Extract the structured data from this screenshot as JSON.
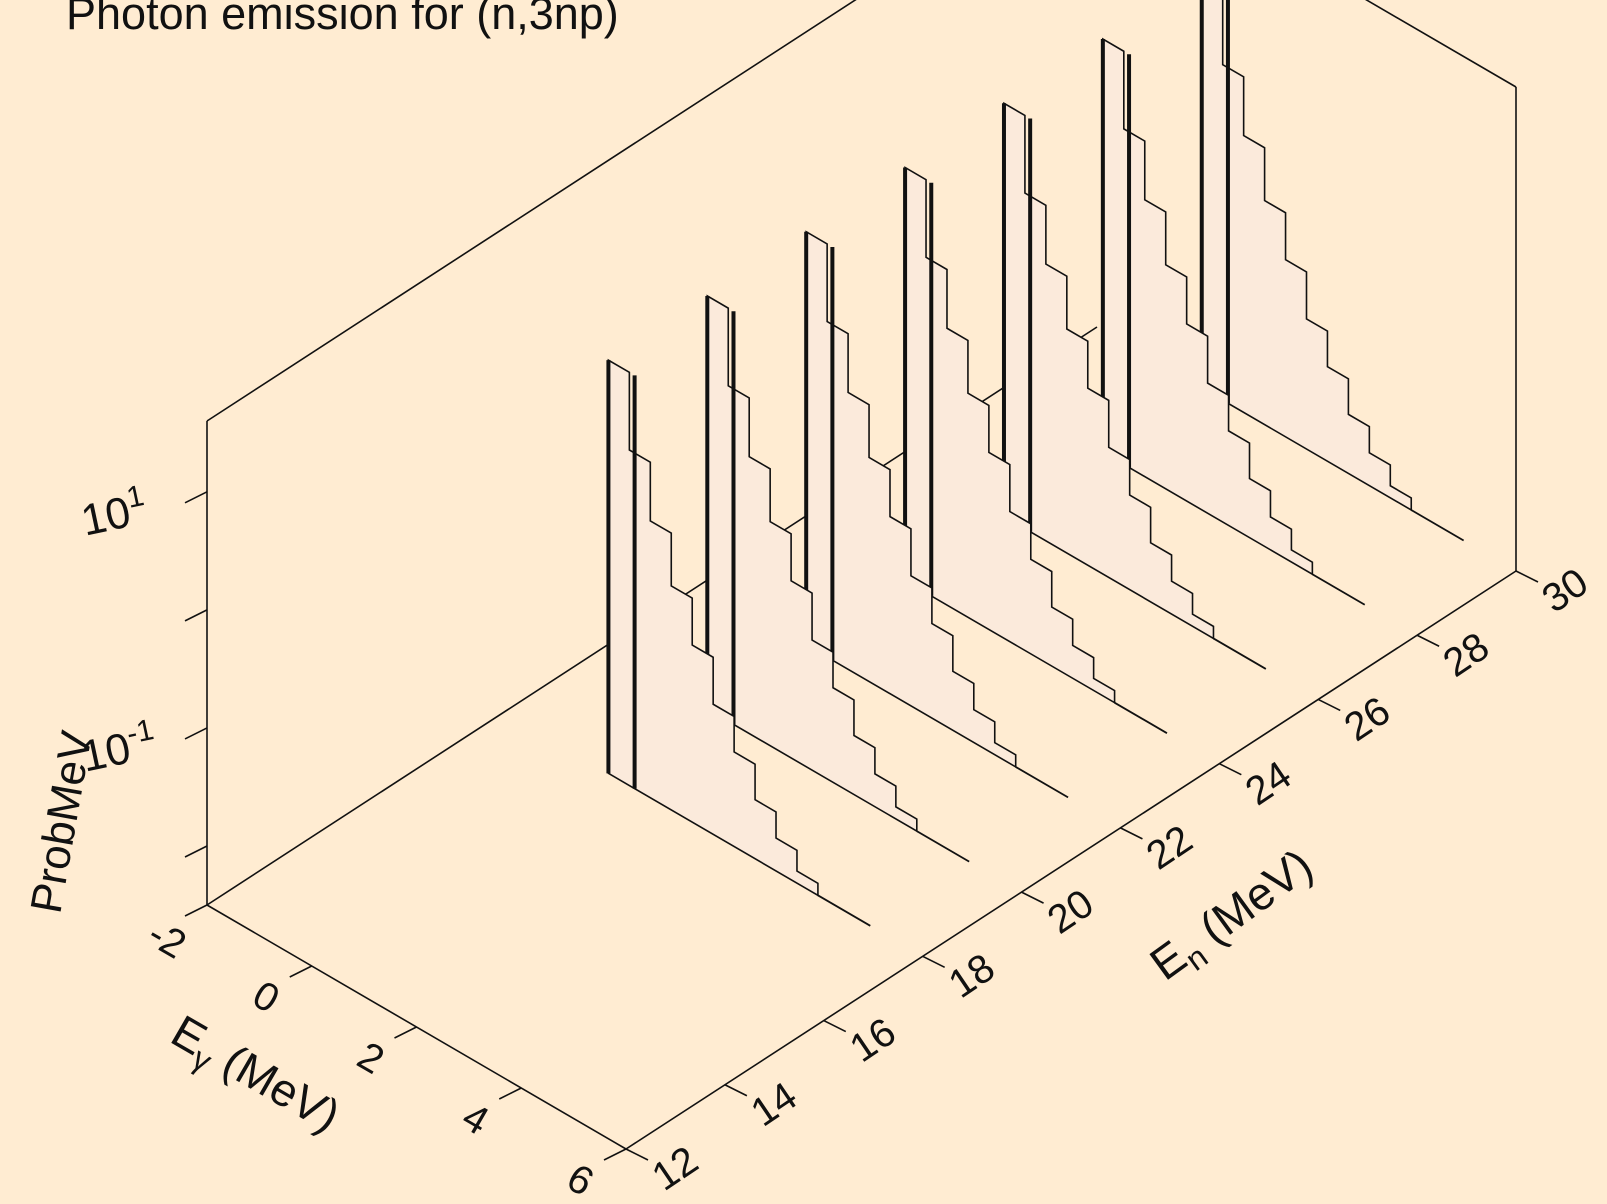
{
  "chart_data": {
    "type": "area",
    "title": "Photon emission for (n,3np)",
    "zlabel": "ProbMeV",
    "xlabel_main": "E",
    "xlabel_sub": "γ",
    "xlabel_units": "(MeV)",
    "ylabel_main": "E",
    "ylabel_sub": "n",
    "ylabel_units": "(MeV)",
    "x_ticks": [
      "-2",
      "0",
      "2",
      "4",
      "6"
    ],
    "y_ticks": [
      "12",
      "14",
      "16",
      "18",
      "20",
      "22",
      "24",
      "26",
      "28",
      "30"
    ],
    "z_ticks": [
      {
        "base": "10",
        "exp": "1"
      },
      {
        "base": "10",
        "exp": "-1"
      }
    ],
    "xlim": [
      -2,
      6
    ],
    "ylim": [
      12,
      30
    ],
    "zscale": "log",
    "zlim_log10": [
      -2.5,
      1.6
    ],
    "fill_color": "#fbeadb",
    "background_color": "#ffecd2",
    "x": [
      0.2,
      0.6,
      1.0,
      1.4,
      1.8,
      2.2,
      2.6,
      3.0,
      3.4,
      3.8
    ],
    "series": [
      {
        "en": 18,
        "values": [
          10.0,
          2.2,
          0.7,
          0.25,
          0.1,
          0.04,
          0.02,
          0.01,
          0.006,
          0.004
        ]
      },
      {
        "en": 20,
        "values": [
          10.0,
          2.2,
          0.7,
          0.25,
          0.1,
          0.04,
          0.02,
          0.01,
          0.006,
          0.004
        ]
      },
      {
        "en": 22,
        "values": [
          10.0,
          2.2,
          0.7,
          0.25,
          0.1,
          0.04,
          0.02,
          0.01,
          0.006,
          0.004
        ]
      },
      {
        "en": 24,
        "values": [
          10.0,
          2.2,
          0.7,
          0.25,
          0.1,
          0.04,
          0.02,
          0.01,
          0.006,
          0.004
        ]
      },
      {
        "en": 26,
        "values": [
          10.0,
          2.2,
          0.7,
          0.25,
          0.1,
          0.04,
          0.02,
          0.01,
          0.006,
          0.004
        ]
      },
      {
        "en": 28,
        "values": [
          10.0,
          2.2,
          0.7,
          0.25,
          0.1,
          0.04,
          0.02,
          0.01,
          0.006,
          0.004
        ]
      },
      {
        "en": 30,
        "values": [
          10.0,
          2.2,
          0.7,
          0.25,
          0.1,
          0.04,
          0.02,
          0.01,
          0.006,
          0.004
        ]
      }
    ],
    "lines": [
      {
        "x": 0.0,
        "value": 10.0
      },
      {
        "x": 0.5,
        "value": 10.0
      }
    ]
  }
}
